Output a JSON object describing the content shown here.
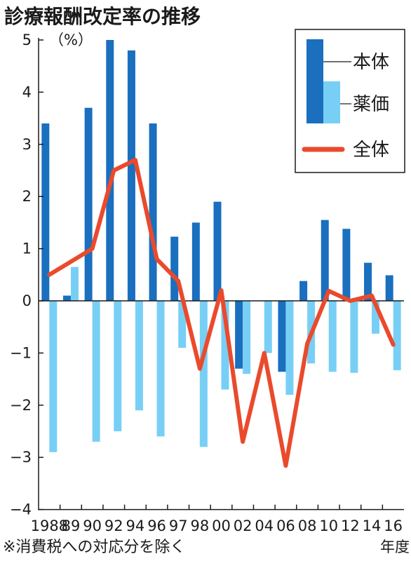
{
  "title": "診療報酬改定率の推移",
  "note": "※消費税への対応分を除く",
  "colors": {
    "honntai": "#1a6fbf",
    "yakka": "#78cff5",
    "zentai": "#ea4a2c",
    "axis": "#1a1a1a"
  },
  "chart_data": {
    "type": "bar",
    "unit_label": "（%）",
    "xlabel": "年度",
    "categories": [
      "1988",
      "89",
      "90",
      "92",
      "94",
      "96",
      "97",
      "98",
      "00",
      "02",
      "04",
      "06",
      "08",
      "10",
      "12",
      "14",
      "16"
    ],
    "ylim": [
      -4,
      5
    ],
    "yticks": [
      5,
      4,
      3,
      2,
      1,
      0,
      -1,
      -2,
      -3,
      -4
    ],
    "ytick_labels": [
      "5",
      "4",
      "3",
      "2",
      "1",
      "0",
      "−1",
      "−2",
      "−3",
      "−4"
    ],
    "grid": false,
    "legend_position": "top-right",
    "series": [
      {
        "name": "本体",
        "kind": "bar",
        "values": [
          3.4,
          0.1,
          3.7,
          5.0,
          4.8,
          3.4,
          1.23,
          1.5,
          1.9,
          -1.3,
          0.0,
          -1.36,
          0.38,
          1.55,
          1.38,
          0.73,
          0.49
        ]
      },
      {
        "name": "薬価",
        "kind": "bar",
        "values": [
          -2.9,
          0.65,
          -2.7,
          -2.5,
          -2.1,
          -2.6,
          -0.9,
          -2.8,
          -1.7,
          -1.4,
          -1.0,
          -1.8,
          -1.2,
          -1.36,
          -1.38,
          -0.63,
          -1.33
        ]
      },
      {
        "name": "全体",
        "kind": "line",
        "values": [
          0.5,
          0.75,
          1.0,
          2.5,
          2.7,
          0.8,
          0.38,
          -1.3,
          0.2,
          -2.7,
          -1.0,
          -3.16,
          -0.82,
          0.19,
          0.0,
          0.1,
          -0.84
        ]
      }
    ]
  }
}
